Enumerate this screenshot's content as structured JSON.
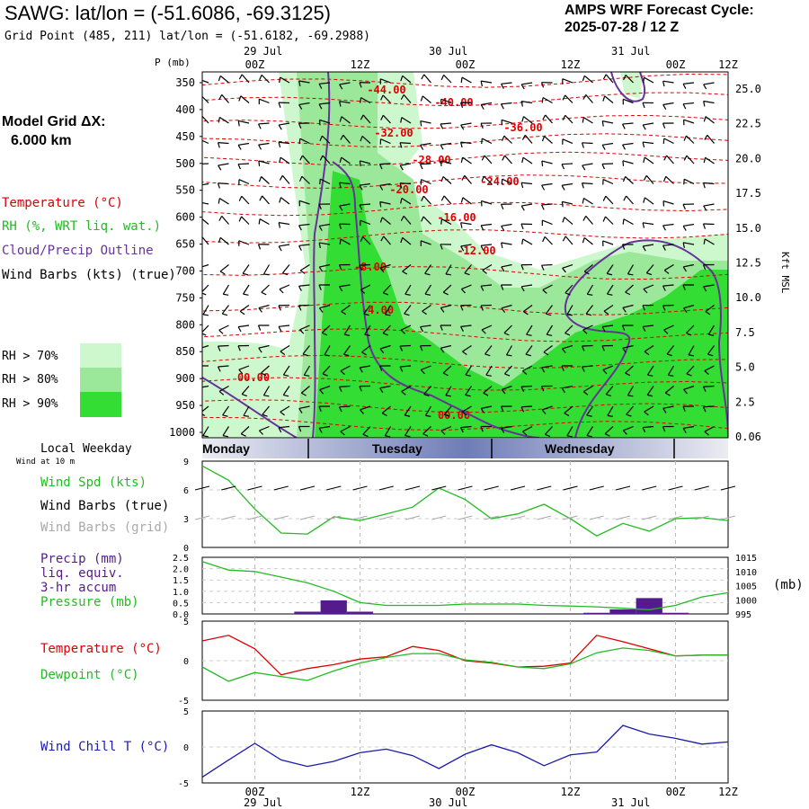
{
  "header": {
    "station": "SAWG:",
    "latlon": "lat/lon = (-51.6086, -69.3125)",
    "gridpoint": "Grid Point (485, 211) lat/lon = (-51.6182, -69.2988)",
    "cycle_title": "AMPS WRF Forecast Cycle:",
    "cycle_date": "2025-07-28 / 12  Z"
  },
  "side": {
    "model_grid_label": "Model Grid ΔX:",
    "model_grid_value": "6.000 km",
    "legend_temperature": "Temperature (°C)",
    "legend_rh": "RH (%, WRT liq. wat.)",
    "legend_cloud": "Cloud/Precip Outline",
    "legend_wind": "Wind Barbs (kts) (true)",
    "rh_swatches": [
      {
        "label": "RH > 70%",
        "color": "#cdf7cd"
      },
      {
        "label": "RH > 80%",
        "color": "#9be89b"
      },
      {
        "label": "RH > 90%",
        "color": "#33dd33"
      }
    ],
    "local_weekday": "Local Weekday",
    "wind_at": "Wind at 10 m",
    "wind_spd": "Wind Spd (kts)",
    "wind_barbs_true": "Wind Barbs (true)",
    "wind_barbs_grid": "Wind Barbs (grid)",
    "precip_label": "Precip (mm)",
    "liq_equiv": "liq. equiv.",
    "accum": "3-hr accum",
    "pressure_label": "Pressure (mb)",
    "temperature_label": "Temperature (°C)",
    "dewpoint_label": "Dewpoint (°C)",
    "windchill_label": "Wind Chill T (°C)"
  },
  "time_axis": {
    "top_dates": [
      "29 Jul",
      "30 Jul",
      "31 Jul"
    ],
    "hour_labels": [
      "00Z",
      "12Z",
      "00Z",
      "12Z",
      "00Z",
      "12Z"
    ],
    "p_label": "P (mb)",
    "weekdays": [
      "Monday",
      "Tuesday",
      "Wednesday"
    ]
  },
  "colors": {
    "temperature": "#dd0000",
    "rh": "#22bb22",
    "cloud": "#663399",
    "wind_grid": "#aaaaaa",
    "precip": "#551a8b",
    "windchill": "#1a1aaa"
  },
  "chart_data": [
    {
      "type": "heatmap",
      "name": "time-height cross section",
      "y_axis_pressure": [
        350,
        400,
        450,
        500,
        550,
        600,
        650,
        700,
        750,
        800,
        850,
        900,
        950,
        1000
      ],
      "y_axis_height_label": "Kft MSL",
      "height_ticks": [
        "25.0",
        "22.5",
        "20.0",
        "17.5",
        "15.0",
        "12.5",
        "10.0",
        "7.5",
        "5.0",
        "2.5",
        "0.06"
      ],
      "temperature_contour_labels": [
        "-44.00",
        "-40.00",
        "-36.00",
        "-32.00",
        "-28.00",
        "-24.00",
        "-20.00",
        "-16.00",
        "-12.00",
        "-8.00",
        "-4.00",
        "00.00",
        "00.00"
      ]
    },
    {
      "type": "line",
      "name": "Wind Spd (kts)",
      "x_hours_from_start": [
        0,
        3,
        6,
        9,
        12,
        15,
        18,
        21,
        24,
        27,
        30,
        33,
        36,
        39,
        42,
        45,
        48,
        51,
        54,
        57,
        60
      ],
      "ylim": [
        0,
        9
      ],
      "yticks": [
        "9",
        "6",
        "3",
        "0"
      ],
      "values": [
        8.5,
        7.0,
        4.0,
        1.5,
        1.4,
        3.2,
        2.8,
        3.5,
        4.2,
        6.2,
        5.0,
        3.0,
        3.5,
        4.5,
        3.0,
        1.2,
        2.5,
        1.7,
        3.0,
        3.1,
        2.8
      ]
    },
    {
      "type": "bar",
      "name": "Precip (mm) liq. equiv. 3-hr accum",
      "ylim": [
        0,
        2.5
      ],
      "yticks": [
        "2.5",
        "2.0",
        "1.5",
        "1.0",
        "0.5",
        "0.0"
      ],
      "bars": [
        {
          "x": 12,
          "value": 0.1
        },
        {
          "x": 15,
          "value": 0.6
        },
        {
          "x": 18,
          "value": 0.1
        },
        {
          "x": 45,
          "value": 0.05
        },
        {
          "x": 48,
          "value": 0.2
        },
        {
          "x": 51,
          "value": 0.7
        },
        {
          "x": 54,
          "value": 0.05
        }
      ]
    },
    {
      "type": "line",
      "name": "Pressure (mb)",
      "ylim": [
        995,
        1015
      ],
      "yticks": [
        "1015",
        "1010",
        "1005",
        "1000",
        "995"
      ],
      "values": [
        1013.5,
        1010.5,
        1010.0,
        1008.0,
        1006.0,
        1003.0,
        999.0,
        998.0,
        998.0,
        998.0,
        998.5,
        998.5,
        998.5,
        998.0,
        997.8,
        997.5,
        997.0,
        996.5,
        998.0,
        1001.0,
        1002.5
      ]
    },
    {
      "type": "line",
      "name": "Temperature / Dewpoint (°C)",
      "ylim": [
        -5,
        5
      ],
      "yticks": [
        "5",
        "0",
        "-5"
      ],
      "series": [
        {
          "name": "Temperature (°C)",
          "values": [
            2.5,
            3.2,
            1.5,
            -1.8,
            -1.0,
            -0.5,
            0.2,
            0.5,
            1.8,
            1.3,
            0.0,
            -0.3,
            -0.8,
            -0.7,
            -0.3,
            3.2,
            2.4,
            1.5,
            0.6,
            0.7,
            0.7
          ]
        },
        {
          "name": "Dewpoint (°C)",
          "values": [
            -0.8,
            -2.6,
            -1.5,
            -2.0,
            -2.5,
            -1.3,
            -0.3,
            0.4,
            0.9,
            0.9,
            0.1,
            -0.2,
            -0.8,
            -1.0,
            -0.4,
            1.0,
            1.6,
            1.3,
            0.6,
            0.7,
            0.7
          ]
        }
      ]
    },
    {
      "type": "line",
      "name": "Wind Chill T (°C)",
      "ylim": [
        -5,
        5
      ],
      "yticks": [
        "5",
        "0",
        "-5"
      ],
      "values": [
        -4.2,
        -1.8,
        0.5,
        -1.8,
        -2.7,
        -2.0,
        -0.8,
        -0.3,
        -1.2,
        -3.0,
        -1.0,
        0.3,
        -0.8,
        -2.6,
        -1.1,
        -0.7,
        3.0,
        1.8,
        1.2,
        0.4,
        0.7
      ]
    }
  ]
}
